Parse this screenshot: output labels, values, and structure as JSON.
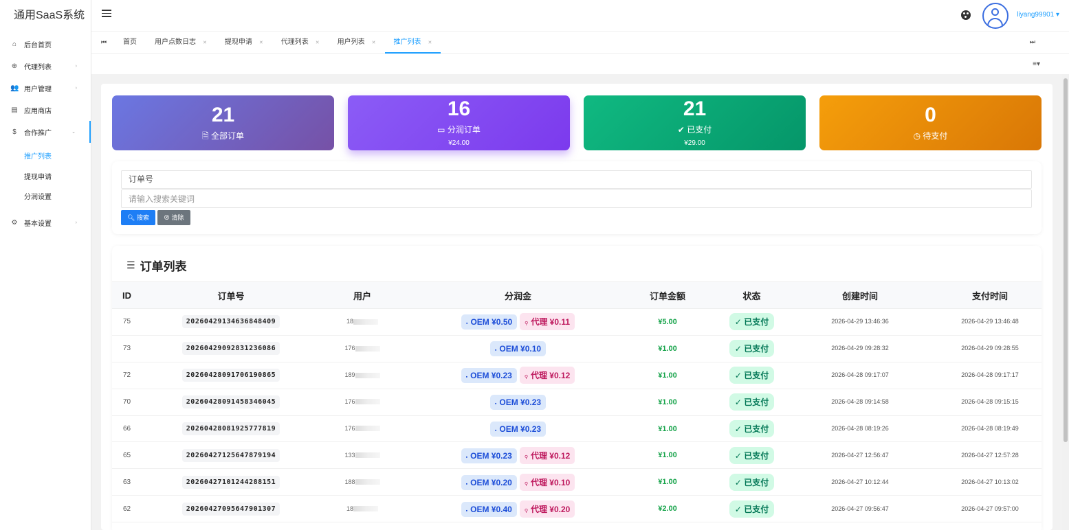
{
  "app": {
    "title": "通用SaaS系统"
  },
  "sidebar": {
    "items": [
      {
        "label": "后台首页",
        "icon": "home-icon"
      },
      {
        "label": "代理列表",
        "icon": "globe-icon"
      },
      {
        "label": "用户管理",
        "icon": "users-icon"
      },
      {
        "label": "应用商店",
        "icon": "store-icon"
      },
      {
        "label": "合作推广",
        "icon": "dollar-icon"
      }
    ],
    "submenu": [
      "推广列表",
      "提现申请",
      "分润设置"
    ],
    "settings": {
      "label": "基本设置",
      "icon": "gear-icon"
    }
  },
  "header": {
    "username": "liyang99901"
  },
  "tabs": [
    "首页",
    "用户点数日志",
    "提现申请",
    "代理列表",
    "用户列表",
    "推广列表"
  ],
  "stats": [
    {
      "value": "21",
      "label": "全部订单",
      "amount": ""
    },
    {
      "value": "16",
      "label": "分润订单",
      "amount": "¥24.00"
    },
    {
      "value": "21",
      "label": "已支付",
      "amount": "¥29.00"
    },
    {
      "value": "0",
      "label": "待支付",
      "amount": ""
    }
  ],
  "search": {
    "field_value": "订单号",
    "keyword_placeholder": "请输入搜索关键词",
    "search_label": "搜索",
    "clear_label": "清除"
  },
  "list": {
    "title": "订单列表",
    "columns": [
      "ID",
      "订单号",
      "用户",
      "分润金",
      "订单金额",
      "状态",
      "创建时间",
      "支付时间"
    ],
    "rows": [
      {
        "id": "75",
        "order_no": "20260429134636848409",
        "user": "18",
        "oem": "OEM ¥0.50",
        "agent": "代理 ¥0.11",
        "amount": "¥5.00",
        "status": "已支付",
        "created": "2026-04-29 13:46:36",
        "paid": "2026-04-29 13:46:48"
      },
      {
        "id": "73",
        "order_no": "20260429092831236086",
        "user": "176",
        "oem": "OEM ¥0.10",
        "agent": "",
        "amount": "¥1.00",
        "status": "已支付",
        "created": "2026-04-29 09:28:32",
        "paid": "2026-04-29 09:28:55"
      },
      {
        "id": "72",
        "order_no": "20260428091706190865",
        "user": "189",
        "oem": "OEM ¥0.23",
        "agent": "代理 ¥0.12",
        "amount": "¥1.00",
        "status": "已支付",
        "created": "2026-04-28 09:17:07",
        "paid": "2026-04-28 09:17:17"
      },
      {
        "id": "70",
        "order_no": "20260428091458346045",
        "user": "176",
        "oem": "OEM ¥0.23",
        "agent": "",
        "amount": "¥1.00",
        "status": "已支付",
        "created": "2026-04-28 09:14:58",
        "paid": "2026-04-28 09:15:15"
      },
      {
        "id": "66",
        "order_no": "20260428081925777819",
        "user": "176",
        "oem": "OEM ¥0.23",
        "agent": "",
        "amount": "¥1.00",
        "status": "已支付",
        "created": "2026-04-28 08:19:26",
        "paid": "2026-04-28 08:19:49"
      },
      {
        "id": "65",
        "order_no": "20260427125647879194",
        "user": "133",
        "oem": "OEM ¥0.23",
        "agent": "代理 ¥0.12",
        "amount": "¥1.00",
        "status": "已支付",
        "created": "2026-04-27 12:56:47",
        "paid": "2026-04-27 12:57:28"
      },
      {
        "id": "63",
        "order_no": "20260427101244288151",
        "user": "188",
        "oem": "OEM ¥0.20",
        "agent": "代理 ¥0.10",
        "amount": "¥1.00",
        "status": "已支付",
        "created": "2026-04-27 10:12:44",
        "paid": "2026-04-27 10:13:02"
      },
      {
        "id": "62",
        "order_no": "20260427095647901307",
        "user": "18",
        "oem": "OEM ¥0.40",
        "agent": "代理 ¥0.20",
        "amount": "¥2.00",
        "status": "已支付",
        "created": "2026-04-27 09:56:47",
        "paid": "2026-04-27 09:57:00"
      }
    ]
  },
  "colors": {
    "accent": "#1e9fff",
    "success": "#16a34a",
    "oem": "#1d4ed8",
    "agent": "#be185d"
  }
}
